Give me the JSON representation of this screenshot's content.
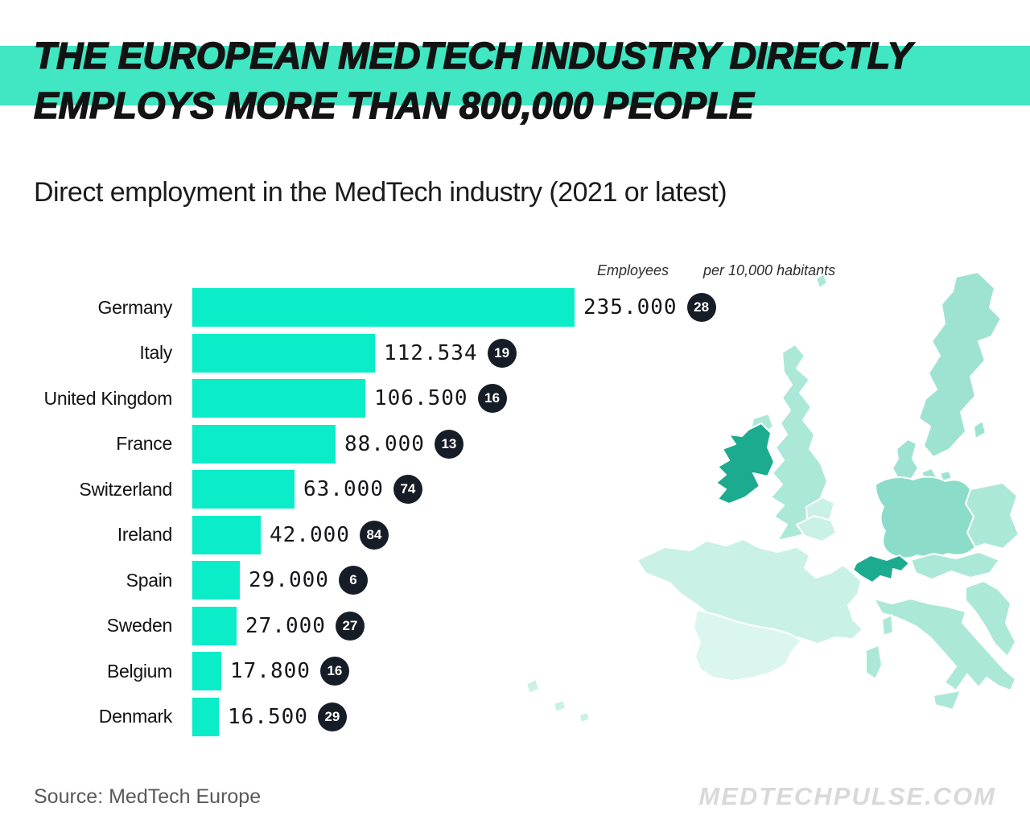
{
  "banner": {
    "line1": "THE EUROPEAN MEDTECH INDUSTRY DIRECTLY",
    "line2": "EMPLOYS MORE THAN 800,000 PEOPLE",
    "highlight_color": "#41E6C2"
  },
  "subtitle": "Direct employment in the MedTech industry (2021 or latest)",
  "columns": {
    "employees": "Employees",
    "per_habitants": "per 10,000 habitants"
  },
  "chart_data": {
    "type": "bar",
    "orientation": "horizontal",
    "title": "Direct employment in the MedTech industry (2021 or latest)",
    "categories": [
      "Germany",
      "Italy",
      "United Kingdom",
      "France",
      "Switzerland",
      "Ireland",
      "Spain",
      "Sweden",
      "Belgium",
      "Denmark"
    ],
    "values": [
      235000,
      112534,
      106500,
      88000,
      63000,
      42000,
      29000,
      27000,
      17800,
      16500
    ],
    "value_labels": [
      "235.000",
      "112.534",
      "106.500",
      "88.000",
      "63.000",
      "42.000",
      "29.000",
      "27.000",
      "17.800",
      "16.500"
    ],
    "per_10000_habitants": [
      28,
      19,
      16,
      13,
      74,
      84,
      6,
      27,
      16,
      29
    ],
    "xlim": [
      0,
      235000
    ],
    "grid": false,
    "bar_color": "#0BECC8",
    "badge_color": "#161D27"
  },
  "map": {
    "region": "Europe choropleth",
    "palette": {
      "dark": "#1CAB8F",
      "medium": "#8BDCC8",
      "medium2": "#9EE3D1",
      "light_medium": "#ACE8D8",
      "light": "#C9F1E6",
      "very_light": "#DBF6EE"
    },
    "countries": {
      "sweden": "medium2",
      "gotland": "medium2",
      "denmark": "medium2",
      "denmark-islands": "medium2",
      "germany": "medium",
      "poland-czech": "light_medium",
      "united-kingdom": "light_medium",
      "shetland": "light_medium",
      "northern-ireland": "light_medium",
      "ireland": "dark",
      "netherlands": "light",
      "belgium": "light",
      "france": "light",
      "spain": "very_light",
      "switzerland": "dark",
      "austria": "light_medium",
      "balkans": "light_medium",
      "italy": "light_medium",
      "sicily": "light_medium",
      "sardinia": "light_medium",
      "corsica": "light_medium",
      "atlantic-islands": "light"
    }
  },
  "footer": {
    "source": "Source: MedTech Europe",
    "brand": "MEDTECHPULSE.COM"
  }
}
